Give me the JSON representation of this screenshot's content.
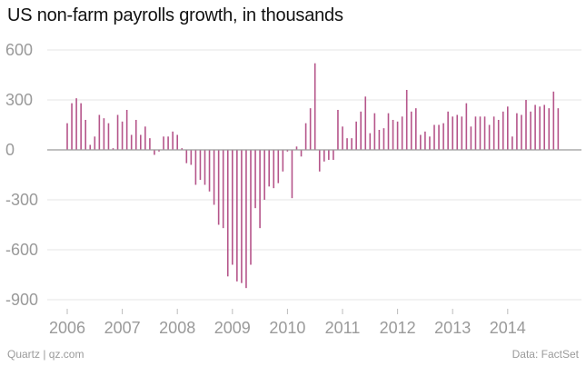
{
  "title": "US non-farm payrolls growth, in thousands",
  "footer": {
    "source_left": "Quartz | qz.com",
    "source_right": "Data: FactSet"
  },
  "colors": {
    "bar": "#b5558a",
    "grid": "#e6e6e6",
    "zero_line": "#9a9a9a",
    "text": "#9a9a9a"
  },
  "chart_data": {
    "type": "bar",
    "title": "US non-farm payrolls growth, in thousands",
    "xlabel": "",
    "ylabel": "",
    "ylim": [
      -950,
      650
    ],
    "yticks": [
      600,
      300,
      0,
      -300,
      -600,
      -900
    ],
    "ytick_labels": [
      "600",
      "300",
      "0",
      "-300",
      "-600",
      "-900"
    ],
    "x_tick_labels": [
      "2006",
      "2007",
      "2008",
      "2009",
      "2010",
      "2011",
      "2012",
      "2013",
      "2014"
    ],
    "grid": true,
    "series": [
      {
        "start": "2006-01",
        "frequency": "monthly",
        "values": [
          160,
          280,
          310,
          280,
          180,
          30,
          80,
          210,
          190,
          160,
          10,
          210,
          170,
          240,
          90,
          180,
          90,
          140,
          70,
          -30,
          -10,
          80,
          80,
          110,
          90,
          10,
          -80,
          -90,
          -210,
          -180,
          -210,
          -250,
          -330,
          -450,
          -470,
          -760,
          -690,
          -790,
          -800,
          -830,
          -690,
          -350,
          -470,
          -300,
          -220,
          -230,
          -200,
          -130,
          -10,
          -290,
          20,
          -40,
          160,
          250,
          520,
          -130,
          -70,
          -60,
          -60,
          240,
          140,
          70,
          70,
          170,
          230,
          320,
          100,
          220,
          120,
          130,
          220,
          180,
          170,
          200,
          360,
          230,
          250,
          90,
          110,
          80,
          150,
          150,
          160,
          230,
          200,
          210,
          200,
          280,
          140,
          200,
          200,
          200,
          150,
          200,
          180,
          230,
          260,
          80,
          220,
          210,
          300,
          230,
          270,
          260,
          270,
          250,
          350,
          250
        ]
      }
    ]
  }
}
